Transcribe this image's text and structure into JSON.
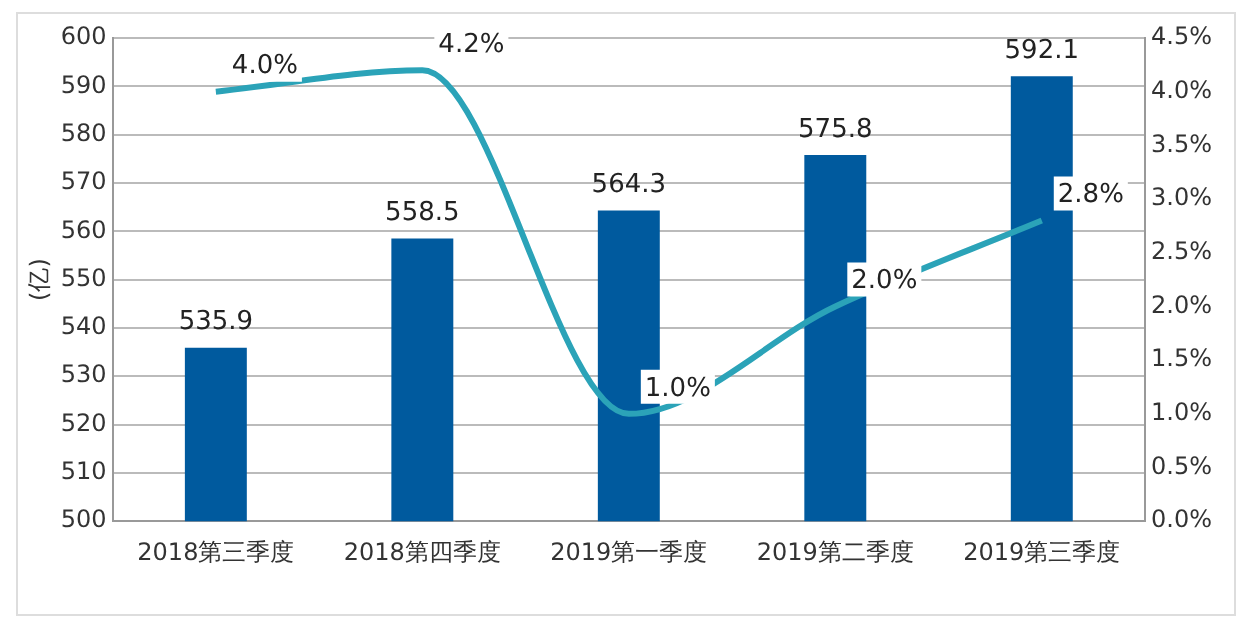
{
  "chart_data": {
    "type": "bar",
    "ylabel": "(亿)",
    "categories": [
      "2018第三季度",
      "2018第四季度",
      "2019第一季度",
      "2019第二季度",
      "2019第三季度"
    ],
    "series": [
      {
        "color": "#005a9e",
        "values": [
          535.9,
          558.5,
          564.3,
          575.8,
          592.1
        ],
        "value_labels": [
          "535.9",
          "558.5",
          "564.3",
          "575.8",
          "592.1"
        ]
      },
      {
        "type": "line",
        "axis": "y2",
        "color": "#2ba3b8",
        "values": [
          4.0,
          4.2,
          1.0,
          2.0,
          2.8
        ],
        "value_labels": [
          "4.0%",
          "4.2%",
          "1.0%",
          "2.0%",
          "2.8%"
        ]
      }
    ],
    "ylim": [
      500,
      600
    ],
    "yticks": [
      500,
      510,
      520,
      530,
      540,
      550,
      560,
      570,
      580,
      590,
      600
    ],
    "y2lim": [
      0,
      4.5
    ],
    "y2ticks": [
      {
        "value": 0,
        "label": "0.0%"
      },
      {
        "value": 0.5,
        "label": "0.5%"
      },
      {
        "value": 1,
        "label": "1.0%"
      },
      {
        "value": 1.5,
        "label": "1.5%"
      },
      {
        "value": 2,
        "label": "2.0%"
      },
      {
        "value": 2.5,
        "label": "2.5%"
      },
      {
        "value": 3,
        "label": "3.0%"
      },
      {
        "value": 3.5,
        "label": "3.5%"
      },
      {
        "value": 4,
        "label": "4.0%"
      },
      {
        "value": 4.5,
        "label": "4.5%"
      }
    ],
    "grid": "y",
    "legend": false,
    "marker": "none"
  }
}
